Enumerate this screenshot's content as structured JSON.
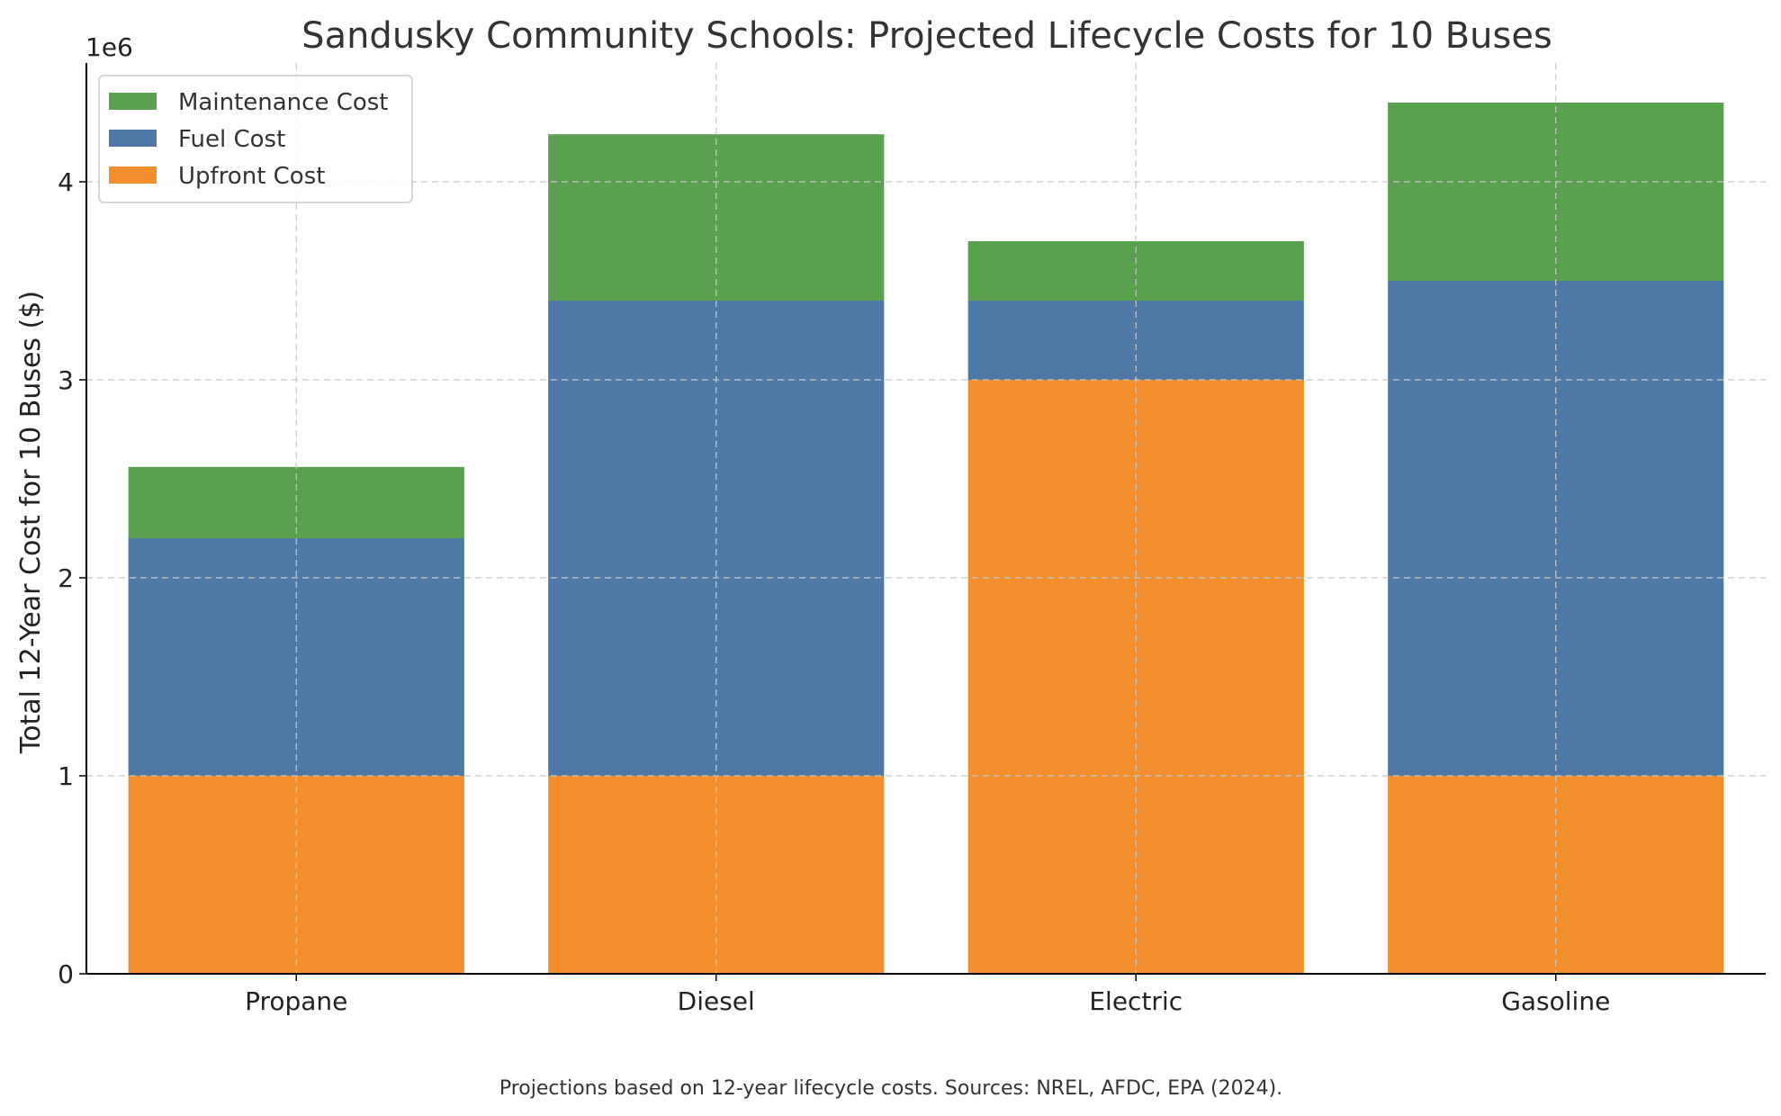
{
  "chart_data": {
    "type": "bar",
    "stacked": true,
    "title": "Sandusky Community Schools: Projected Lifecycle Costs for 10 Buses",
    "xlabel": "",
    "ylabel": "Total 12-Year Cost for 10 Buses ($)",
    "y_offset_label": "1e6",
    "y_scale_factor": 1000000,
    "ylim": [
      0,
      4600000
    ],
    "y_ticks": [
      0,
      1000000,
      2000000,
      3000000,
      4000000
    ],
    "y_tick_labels": [
      "0",
      "1",
      "2",
      "3",
      "4"
    ],
    "grid": true,
    "legend_position": "top-left",
    "categories": [
      "Propane",
      "Diesel",
      "Electric",
      "Gasoline"
    ],
    "series": [
      {
        "name": "Upfront Cost",
        "color": "#f28e2b",
        "values": [
          1000000,
          1000000,
          3000000,
          1000000
        ]
      },
      {
        "name": "Fuel Cost",
        "color": "#4e79a7",
        "values": [
          1200000,
          2400000,
          400000,
          2500000
        ]
      },
      {
        "name": "Maintenance Cost",
        "color": "#59a14f",
        "values": [
          360000,
          840000,
          300000,
          900000
        ]
      }
    ],
    "legend_order": [
      "Maintenance Cost",
      "Fuel Cost",
      "Upfront Cost"
    ],
    "footnote": "Projections based on 12-year lifecycle costs. Sources: NREL, AFDC, EPA (2024)."
  }
}
